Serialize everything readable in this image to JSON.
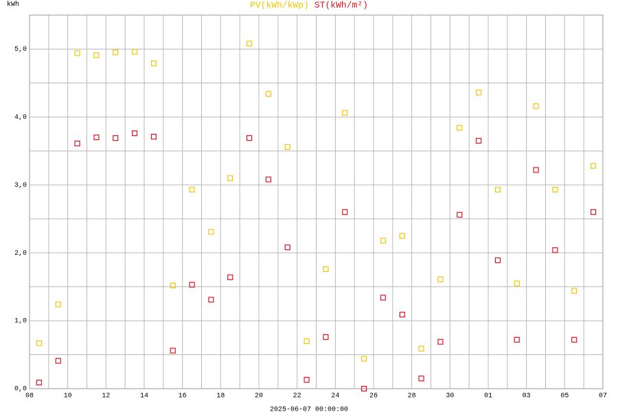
{
  "chart_data": {
    "type": "scatter",
    "y_label": "kWh",
    "x_label": "2025-06-07 00:00:00",
    "xlim": [
      0,
      30
    ],
    "xticks": [
      {
        "value": 0,
        "label": "08"
      },
      {
        "value": 2,
        "label": "10"
      },
      {
        "value": 4,
        "label": "12"
      },
      {
        "value": 6,
        "label": "14"
      },
      {
        "value": 8,
        "label": "16"
      },
      {
        "value": 10,
        "label": "18"
      },
      {
        "value": 12,
        "label": "20"
      },
      {
        "value": 14,
        "label": "22"
      },
      {
        "value": 16,
        "label": "24"
      },
      {
        "value": 18,
        "label": "26"
      },
      {
        "value": 20,
        "label": "28"
      },
      {
        "value": 22,
        "label": "30"
      },
      {
        "value": 24,
        "label": "01"
      },
      {
        "value": 26,
        "label": "03"
      },
      {
        "value": 28,
        "label": "05"
      },
      {
        "value": 30,
        "label": "07"
      }
    ],
    "ylim": [
      0,
      5.5
    ],
    "yticks": [
      {
        "value": 0,
        "label": "0,0"
      },
      {
        "value": 1,
        "label": "1,0"
      },
      {
        "value": 2,
        "label": "2,0"
      },
      {
        "value": 3,
        "label": "3,0"
      },
      {
        "value": 4,
        "label": "4,0"
      },
      {
        "value": 5,
        "label": "5,0"
      }
    ],
    "grid": true,
    "x": [
      0.5,
      1.5,
      2.5,
      3.5,
      4.5,
      5.5,
      6.5,
      7.5,
      8.5,
      9.5,
      10.5,
      11.5,
      12.5,
      13.5,
      14.5,
      15.5,
      16.5,
      17.5,
      18.5,
      19.5,
      20.5,
      21.5,
      22.5,
      23.5,
      24.5,
      25.5,
      26.5,
      27.5,
      28.5,
      29.5
    ],
    "series": [
      {
        "name": "PV(kWh/kWp)",
        "color": "#f5c400",
        "values": [
          0.67,
          1.24,
          4.94,
          4.91,
          4.95,
          4.96,
          4.79,
          1.52,
          2.93,
          2.31,
          3.1,
          5.08,
          4.34,
          3.56,
          0.7,
          1.76,
          4.06,
          0.44,
          2.18,
          2.25,
          0.59,
          1.61,
          3.84,
          4.36,
          2.93,
          1.55,
          4.16,
          2.93,
          1.44,
          3.28
        ]
      },
      {
        "name": "ST(kWh/m²)",
        "color": "#e8101a",
        "values": [
          0.09,
          0.41,
          3.61,
          3.7,
          3.69,
          3.76,
          3.71,
          0.56,
          1.53,
          1.31,
          1.64,
          3.69,
          3.08,
          2.08,
          0.13,
          0.76,
          2.6,
          0.0,
          1.34,
          1.09,
          0.15,
          0.69,
          2.56,
          3.65,
          1.89,
          0.72,
          3.22,
          2.04,
          0.72,
          2.6
        ]
      }
    ]
  }
}
